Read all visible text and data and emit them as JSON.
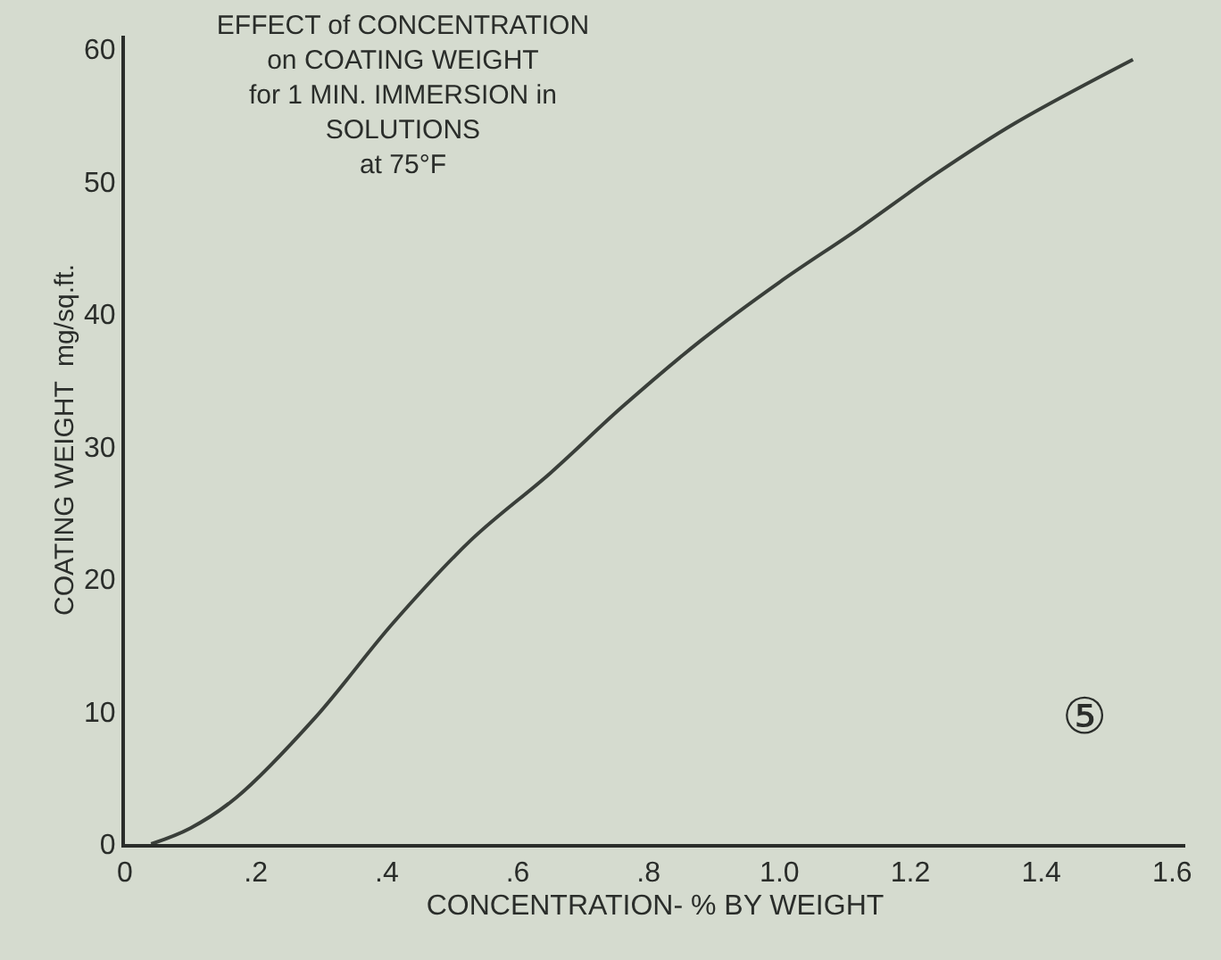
{
  "chart_data": {
    "type": "line",
    "title": "EFFECT of CONCENTRATION\non COATING WEIGHT\nfor 1 MIN. IMMERSION in\nSOLUTIONS\nat 75°F",
    "xlabel": "CONCENTRATION- % BY WEIGHT",
    "ylabel": "COATING WEIGHT  mg/sq.ft.",
    "x": [
      0.04,
      0.1,
      0.17,
      0.29,
      0.41,
      0.53,
      0.65,
      0.76,
      0.88,
      1.0,
      1.12,
      1.24,
      1.36,
      1.54
    ],
    "series": [
      {
        "color": "#3a3f3a",
        "values": [
          0,
          1.2,
          3.5,
          9.5,
          16.7,
          23,
          28,
          33,
          38,
          42.4,
          46.4,
          50.6,
          54.4,
          59.2
        ]
      }
    ],
    "xlim": [
      0,
      1.62
    ],
    "ylim": [
      0,
      61
    ],
    "xticks": [
      0,
      {
        "value": 0.2,
        "label": ".2"
      },
      {
        "value": 0.4,
        "label": ".4"
      },
      {
        "value": 0.6,
        "label": ".6"
      },
      {
        "value": 0.8,
        "label": ".8"
      },
      {
        "value": 1.0,
        "label": "1.0"
      },
      {
        "value": 1.2,
        "label": "1.2"
      },
      {
        "value": 1.4,
        "label": "1.4"
      },
      {
        "value": 1.6,
        "label": "1.6"
      }
    ],
    "yticks": [
      0,
      10,
      20,
      30,
      40,
      50,
      60
    ],
    "annotations": [
      "⑤"
    ],
    "grid": false,
    "legend": false,
    "marker": "none",
    "line_style": "solid"
  }
}
